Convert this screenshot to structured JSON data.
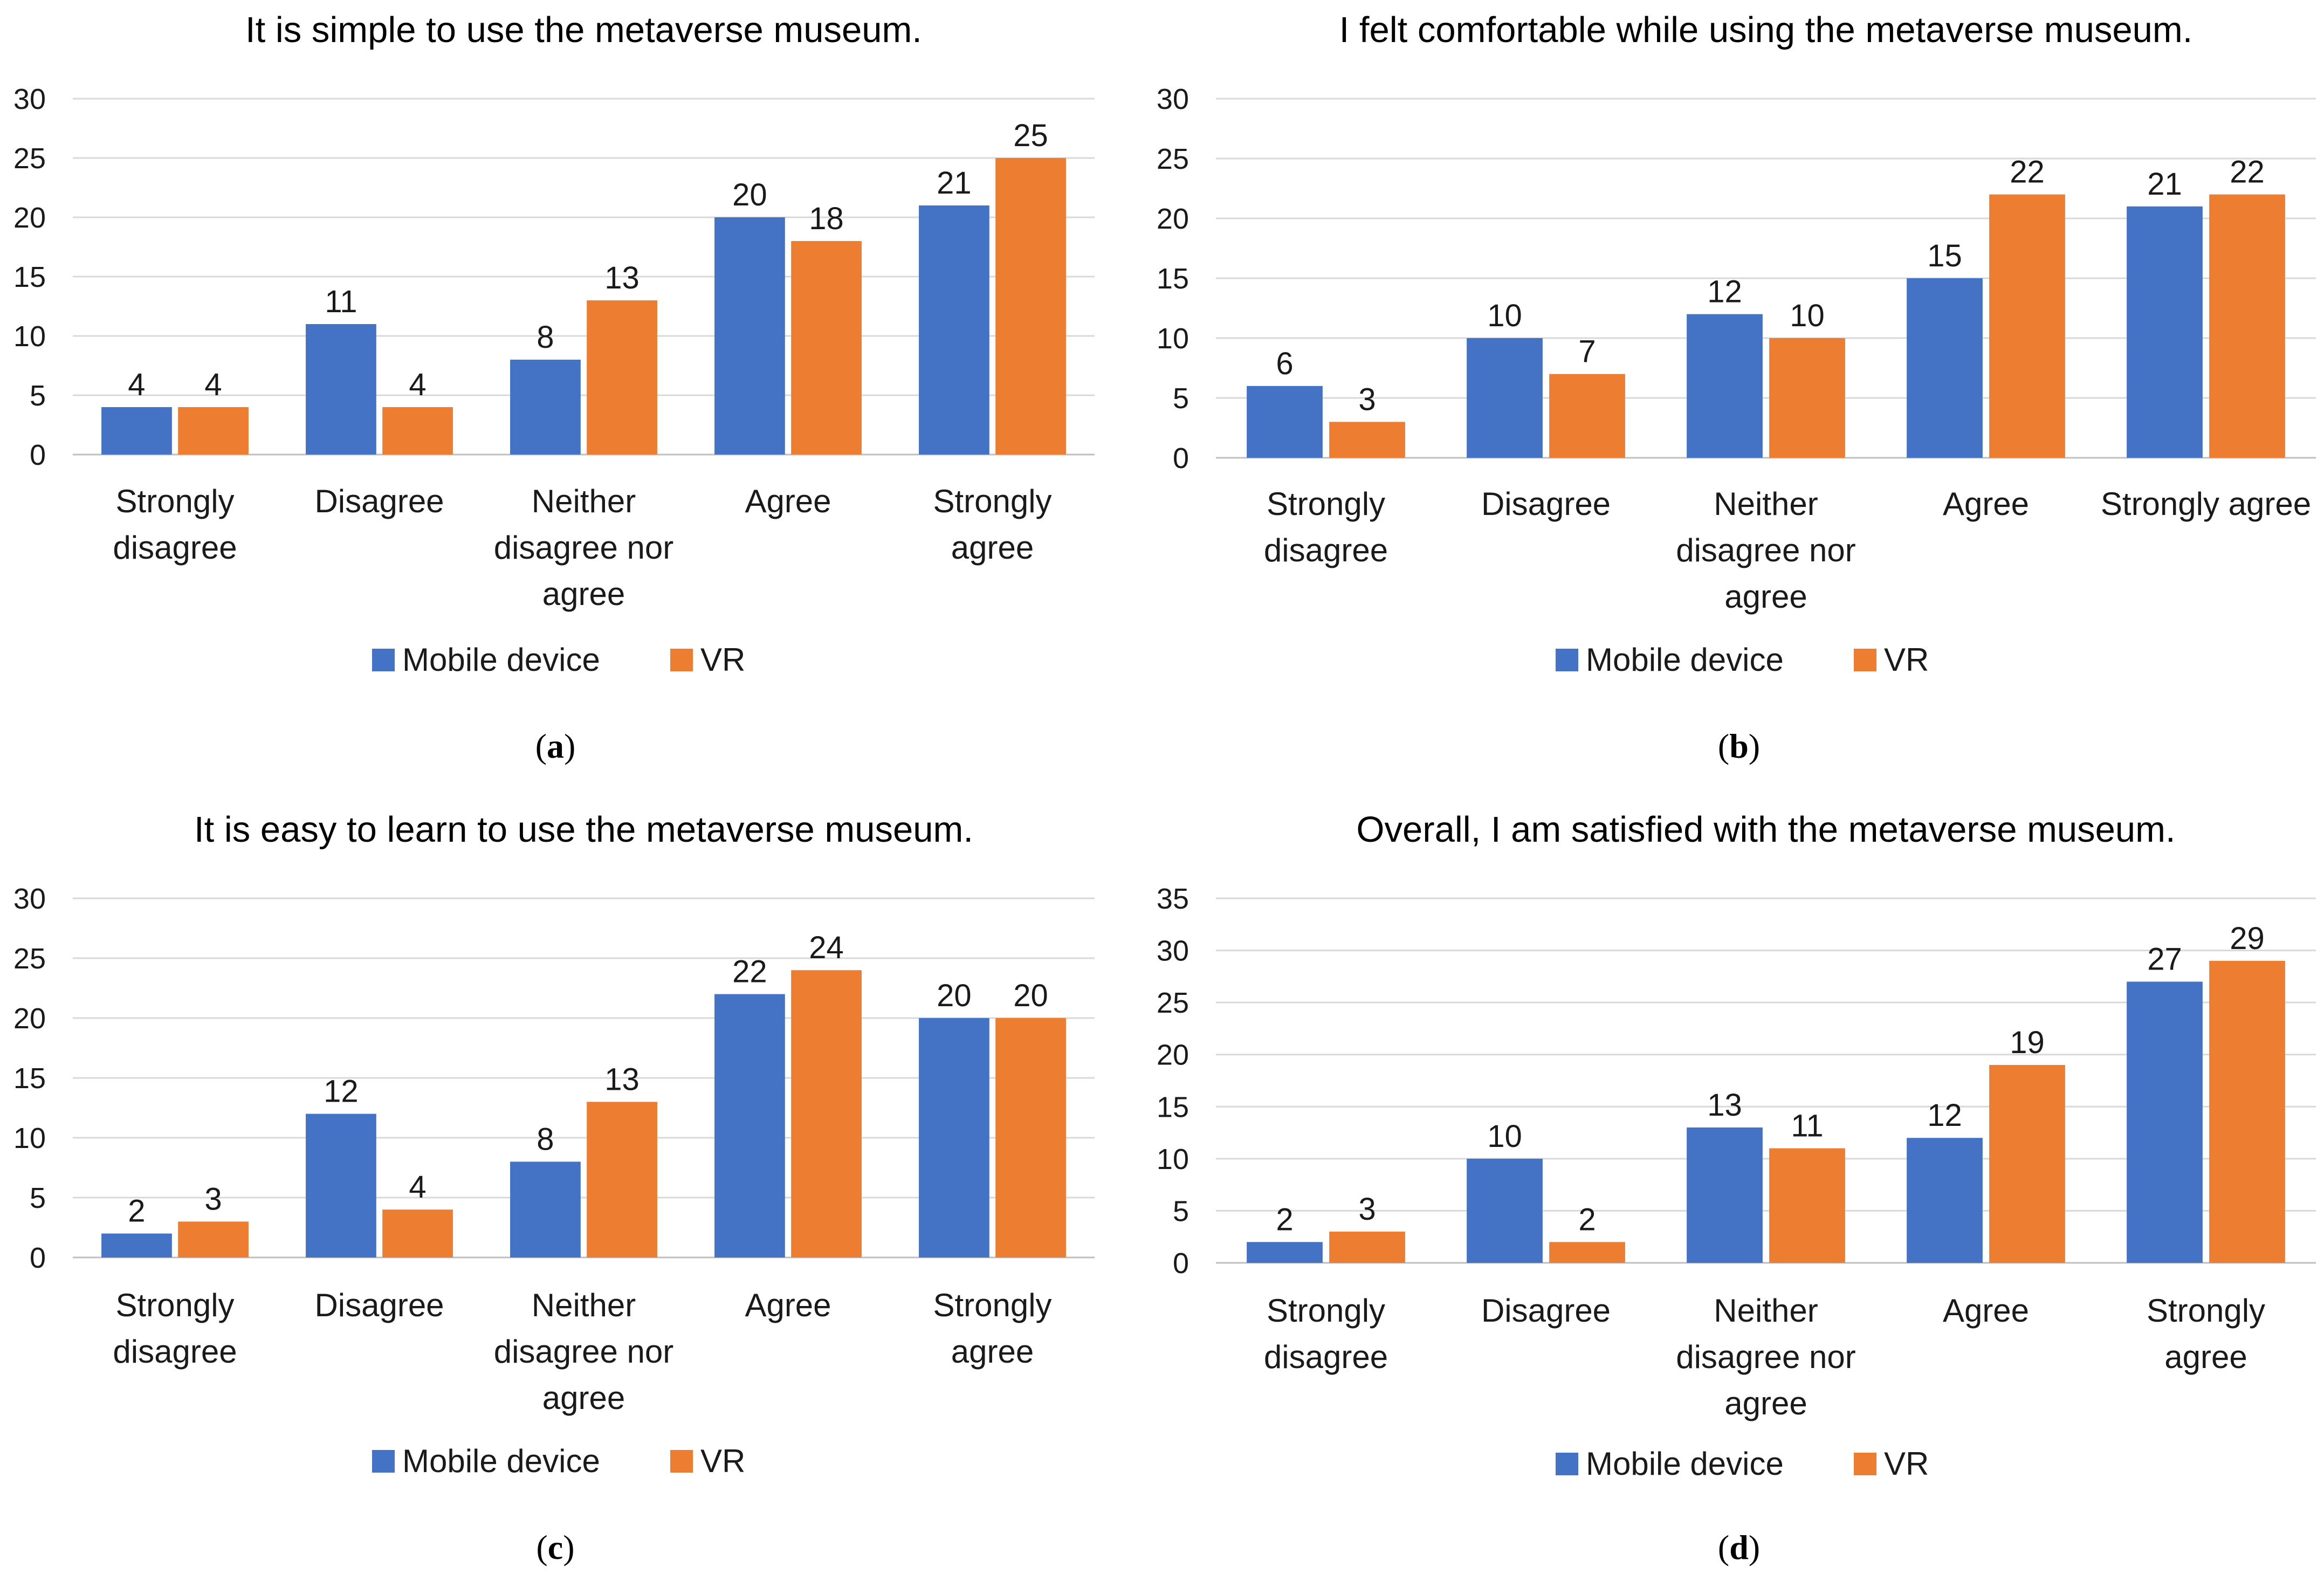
{
  "colors": {
    "mobile": "#4472C4",
    "vr": "#ED7D31"
  },
  "chart_data": [
    {
      "type": "bar",
      "title": "It is simple to use the metaverse museum.",
      "caption_letter": "a",
      "categories": [
        [
          "Strongly",
          "disagree"
        ],
        [
          "Disagree"
        ],
        [
          "Neither",
          "disagree nor",
          "agree"
        ],
        [
          "Agree"
        ],
        [
          "Strongly",
          "agree"
        ]
      ],
      "series": [
        {
          "name": "Mobile device",
          "values": [
            4,
            11,
            8,
            20,
            21
          ]
        },
        {
          "name": "VR",
          "values": [
            4,
            4,
            13,
            18,
            25
          ]
        }
      ],
      "yticks": [
        0,
        5,
        10,
        15,
        20,
        25,
        30
      ],
      "ylim": [
        0,
        30
      ],
      "legend": "bottom",
      "grid": true
    },
    {
      "type": "bar",
      "title": "I felt comfortable while using the metaverse museum.",
      "caption_letter": "b",
      "categories": [
        [
          "Strongly",
          "disagree"
        ],
        [
          "Disagree"
        ],
        [
          "Neither",
          "disagree nor",
          "agree"
        ],
        [
          "Agree"
        ],
        [
          "Strongly agree"
        ]
      ],
      "series": [
        {
          "name": "Mobile device",
          "values": [
            6,
            10,
            12,
            15,
            21
          ]
        },
        {
          "name": "VR",
          "values": [
            3,
            7,
            10,
            22,
            22
          ]
        }
      ],
      "yticks": [
        0,
        5,
        10,
        15,
        20,
        25,
        30
      ],
      "ylim": [
        0,
        30
      ],
      "legend": "bottom",
      "grid": true
    },
    {
      "type": "bar",
      "title": "It is easy to learn to use the metaverse museum.",
      "caption_letter": "c",
      "categories": [
        [
          "Strongly",
          "disagree"
        ],
        [
          "Disagree"
        ],
        [
          "Neither",
          "disagree nor",
          "agree"
        ],
        [
          "Agree"
        ],
        [
          "Strongly",
          "agree"
        ]
      ],
      "series": [
        {
          "name": "Mobile device",
          "values": [
            2,
            12,
            8,
            22,
            20
          ]
        },
        {
          "name": "VR",
          "values": [
            3,
            4,
            13,
            24,
            20
          ]
        }
      ],
      "yticks": [
        0,
        5,
        10,
        15,
        20,
        25,
        30
      ],
      "ylim": [
        0,
        30
      ],
      "legend": "bottom",
      "grid": true
    },
    {
      "type": "bar",
      "title": "Overall, I am satisfied with the metaverse museum.",
      "caption_letter": "d",
      "categories": [
        [
          "Strongly",
          "disagree"
        ],
        [
          "Disagree"
        ],
        [
          "Neither",
          "disagree nor",
          "agree"
        ],
        [
          "Agree"
        ],
        [
          "Strongly",
          "agree"
        ]
      ],
      "series": [
        {
          "name": "Mobile device",
          "values": [
            2,
            10,
            13,
            12,
            27
          ]
        },
        {
          "name": "VR",
          "values": [
            3,
            2,
            11,
            19,
            29
          ]
        }
      ],
      "yticks": [
        0,
        5,
        10,
        15,
        20,
        25,
        30,
        35
      ],
      "ylim": [
        0,
        35
      ],
      "legend": "bottom",
      "grid": true
    }
  ]
}
